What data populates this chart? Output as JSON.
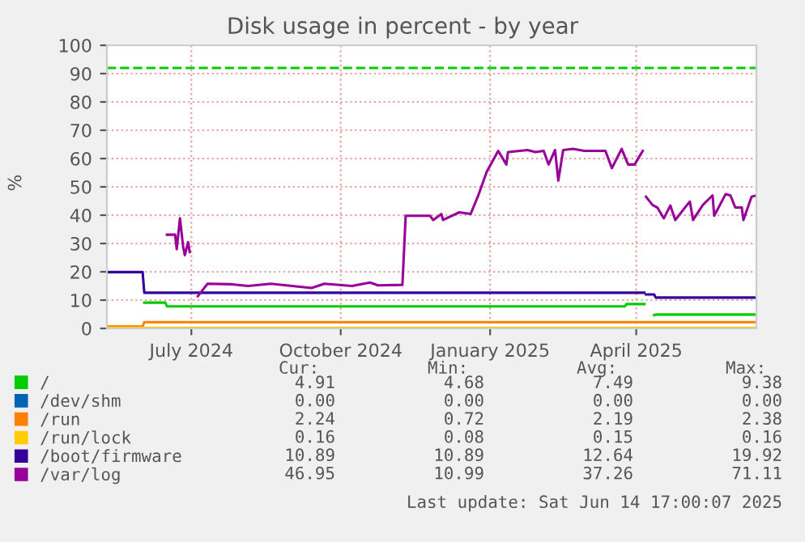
{
  "chart_data": {
    "type": "line",
    "title": "Disk usage in percent - by year",
    "ylabel": "%",
    "xlim": [
      "2024-05-10",
      "2025-06-14"
    ],
    "xticks": [
      {
        "value": "2024-07-01",
        "label": "July 2024"
      },
      {
        "value": "2024-10-01",
        "label": "October 2024"
      },
      {
        "value": "2025-01-01",
        "label": "January 2025"
      },
      {
        "value": "2025-04-01",
        "label": "April 2025"
      }
    ],
    "ylim": [
      0,
      100
    ],
    "yticks": [
      0,
      10,
      20,
      30,
      40,
      50,
      60,
      70,
      80,
      90,
      100
    ],
    "grid": true,
    "legend": "bottom",
    "marker": "none",
    "line_style": "solid",
    "ref_lines": [
      {
        "axis": "y",
        "value": 92,
        "color": "#00cc00",
        "line_style": "dashed"
      }
    ],
    "series": [
      {
        "name": "/",
        "color": "#00cc00",
        "x": [
          "2024-06-02",
          "2024-06-15",
          "2024-06-16",
          "2025-03-25",
          "2025-03-26",
          "2025-04-06",
          "2025-04-07",
          "2025-04-12",
          "2025-04-13",
          "2025-06-14"
        ],
        "values": [
          9.1,
          9.1,
          7.8,
          7.8,
          8.6,
          8.6,
          null,
          4.7,
          4.9,
          4.9
        ]
      },
      {
        "name": "/dev/shm",
        "color": "#0066b3"
      },
      {
        "name": "/run",
        "color": "#ff8000",
        "x": [
          "2024-05-10",
          "2024-06-01",
          "2024-06-02",
          "2025-06-14"
        ],
        "values": [
          0.7,
          0.7,
          2.2,
          2.2
        ]
      },
      {
        "name": "/run/lock",
        "color": "#ffcc00",
        "x": [
          "2024-05-10",
          "2025-06-14"
        ],
        "values": [
          0.2,
          0.2
        ]
      },
      {
        "name": "/boot/firmware",
        "color": "#330099",
        "x": [
          "2024-05-10",
          "2024-06-01",
          "2024-06-02",
          "2025-04-06",
          "2025-04-06T12:00",
          "2025-04-07",
          "2025-04-12",
          "2025-04-13",
          "2025-06-14"
        ],
        "values": [
          19.9,
          19.9,
          12.6,
          12.6,
          null,
          12.0,
          12.0,
          10.9,
          10.9
        ]
      },
      {
        "name": "/var/log",
        "color": "#990099",
        "x": [
          "2024-06-16",
          "2024-06-21",
          "2024-06-22",
          "2024-06-24",
          "2024-06-26",
          "2024-06-27",
          "2024-06-29",
          "2024-06-30",
          "2024-07-03",
          "2024-07-05",
          "2024-07-11",
          "2024-07-26",
          "2024-08-05",
          "2024-08-19",
          "2024-09-13",
          "2024-09-21",
          "2024-10-08",
          "2024-10-19",
          "2024-10-24",
          "2024-11-08",
          "2024-11-10",
          "2024-11-25",
          "2024-11-27",
          "2024-12-02",
          "2024-12-03",
          "2024-12-13",
          "2024-12-20",
          "2024-12-25",
          "2024-12-30",
          "2025-01-06",
          "2025-01-11",
          "2025-01-12",
          "2025-01-24",
          "2025-01-29",
          "2025-02-03",
          "2025-02-06",
          "2025-02-10",
          "2025-02-12",
          "2025-02-15",
          "2025-02-21",
          "2025-02-28",
          "2025-03-13",
          "2025-03-17",
          "2025-03-23",
          "2025-03-27",
          "2025-03-31",
          "2025-04-05",
          "2025-04-06",
          "2025-04-07",
          "2025-04-11",
          "2025-04-14",
          "2025-04-18",
          "2025-04-22",
          "2025-04-25",
          "2025-05-02",
          "2025-05-04",
          "2025-05-06",
          "2025-05-12",
          "2025-05-18",
          "2025-05-19",
          "2025-05-26",
          "2025-05-29",
          "2025-06-01",
          "2025-06-05",
          "2025-06-06",
          "2025-06-11",
          "2025-06-14"
        ],
        "values": [
          33.1,
          33.1,
          28.0,
          38.9,
          28.6,
          25.9,
          30.5,
          27.0,
          null,
          11.4,
          15.8,
          15.6,
          15.0,
          15.8,
          14.3,
          15.8,
          15.0,
          16.2,
          15.2,
          15.4,
          39.8,
          39.8,
          38.3,
          40.4,
          38.3,
          41.0,
          40.4,
          47.4,
          55.4,
          62.7,
          57.9,
          62.3,
          63.0,
          62.3,
          62.7,
          57.9,
          63.0,
          52.2,
          63.0,
          63.4,
          62.7,
          62.7,
          56.6,
          63.4,
          57.9,
          57.9,
          62.7,
          null,
          46.5,
          43.6,
          42.7,
          38.9,
          43.4,
          38.3,
          43.4,
          44.8,
          38.3,
          43.6,
          47.0,
          39.8,
          47.4,
          47.0,
          42.7,
          42.7,
          38.3,
          46.5,
          47.0
        ]
      }
    ],
    "annotations": [
      "Cur:",
      "Min:",
      "Avg:",
      "Max:",
      "4.91",
      "4.68",
      "7.49",
      "9.38",
      "0.00",
      "0.00",
      "0.00",
      "0.00",
      "2.24",
      "0.72",
      "2.19",
      "2.38",
      "0.16",
      "0.08",
      "0.15",
      "0.16",
      "10.89",
      "10.89",
      "12.64",
      "19.92",
      "46.95",
      "10.99",
      "37.26",
      "71.11",
      "Last update: Sat Jun 14 17:00:07 2025"
    ]
  }
}
